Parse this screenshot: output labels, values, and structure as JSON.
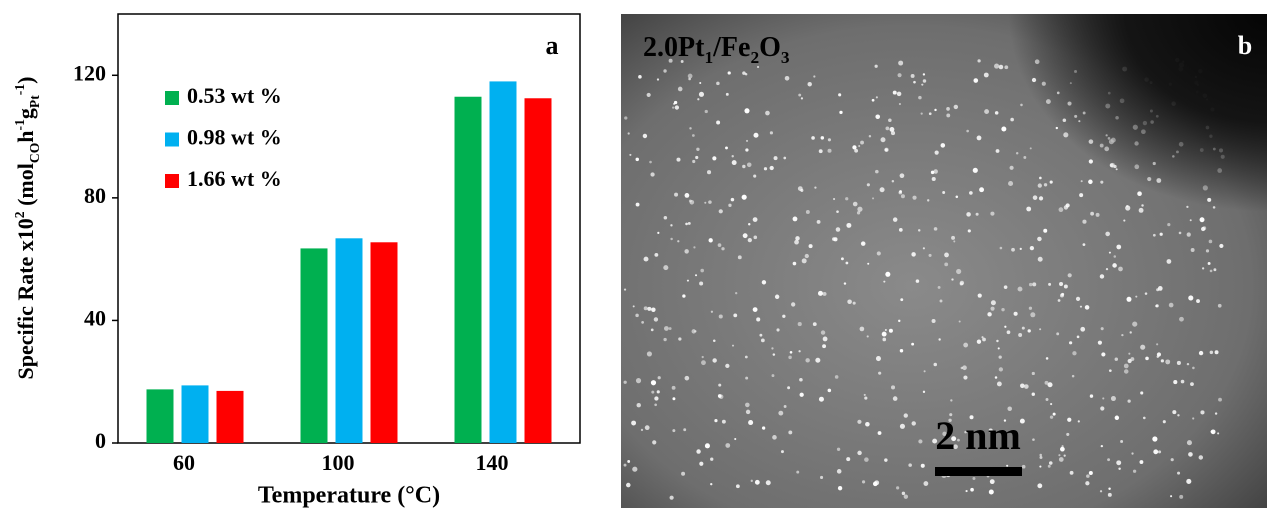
{
  "chart_data": {
    "type": "bar",
    "panel_label": "a",
    "x_label": "Temperature (°C)",
    "y_label": [
      "Specific Rate x10",
      "2",
      " (mol",
      "CO",
      "h",
      "-1",
      "g",
      "Pt",
      "-1",
      ")"
    ],
    "categories": [
      "60",
      "100",
      "140"
    ],
    "series": [
      {
        "name": "0.53 wt %",
        "color": "#00b050",
        "values": [
          17.5,
          63.5,
          113
        ]
      },
      {
        "name": "0.98 wt %",
        "color": "#00b0f0",
        "values": [
          18.8,
          66.8,
          118
        ]
      },
      {
        "name": "1.66 wt %",
        "color": "#ff0000",
        "values": [
          17,
          65.5,
          112.5
        ]
      }
    ],
    "ylim": [
      0,
      140
    ],
    "yticks": [
      0,
      40,
      80,
      120
    ],
    "legend": "upper-left"
  },
  "image_panel": {
    "panel_label": "b",
    "title": [
      "2.0Pt",
      "1",
      "/Fe",
      "2",
      "O",
      "3"
    ],
    "scale_bar": "2 nm"
  }
}
